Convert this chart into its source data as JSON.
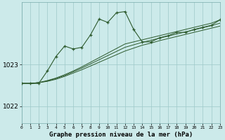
{
  "title": "Graphe pression niveau de la mer (hPa)",
  "bg_color": "#cceaea",
  "grid_color": "#9ec8c8",
  "line_color": "#2d5a2d",
  "xmin": 0,
  "xmax": 23,
  "ymin": 1021.6,
  "ymax": 1024.5,
  "yticks": [
    1022,
    1023
  ],
  "xticks": [
    0,
    1,
    2,
    3,
    4,
    5,
    6,
    7,
    8,
    9,
    10,
    11,
    12,
    13,
    14,
    15,
    16,
    17,
    18,
    19,
    20,
    21,
    22,
    23
  ],
  "line1_nomarker": [
    [
      0,
      1022.55
    ],
    [
      1,
      1022.55
    ],
    [
      2,
      1022.57
    ],
    [
      3,
      1022.6
    ],
    [
      4,
      1022.65
    ],
    [
      5,
      1022.72
    ],
    [
      6,
      1022.8
    ],
    [
      7,
      1022.88
    ],
    [
      8,
      1022.97
    ],
    [
      9,
      1023.06
    ],
    [
      10,
      1023.15
    ],
    [
      11,
      1023.24
    ],
    [
      12,
      1023.33
    ],
    [
      13,
      1023.4
    ],
    [
      14,
      1023.47
    ],
    [
      15,
      1023.52
    ],
    [
      16,
      1023.58
    ],
    [
      17,
      1023.63
    ],
    [
      18,
      1023.68
    ],
    [
      19,
      1023.73
    ],
    [
      20,
      1023.78
    ],
    [
      21,
      1023.83
    ],
    [
      22,
      1023.88
    ],
    [
      23,
      1023.93
    ]
  ],
  "line2_nomarker": [
    [
      0,
      1022.55
    ],
    [
      1,
      1022.55
    ],
    [
      2,
      1022.57
    ],
    [
      3,
      1022.61
    ],
    [
      4,
      1022.67
    ],
    [
      5,
      1022.74
    ],
    [
      6,
      1022.83
    ],
    [
      7,
      1022.92
    ],
    [
      8,
      1023.02
    ],
    [
      9,
      1023.12
    ],
    [
      10,
      1023.22
    ],
    [
      11,
      1023.32
    ],
    [
      12,
      1023.42
    ],
    [
      13,
      1023.48
    ],
    [
      14,
      1023.54
    ],
    [
      15,
      1023.59
    ],
    [
      16,
      1023.64
    ],
    [
      17,
      1023.69
    ],
    [
      18,
      1023.74
    ],
    [
      19,
      1023.79
    ],
    [
      20,
      1023.84
    ],
    [
      21,
      1023.89
    ],
    [
      22,
      1023.94
    ],
    [
      23,
      1024.0
    ]
  ],
  "line3_nomarker": [
    [
      0,
      1022.55
    ],
    [
      1,
      1022.55
    ],
    [
      2,
      1022.57
    ],
    [
      3,
      1022.62
    ],
    [
      4,
      1022.68
    ],
    [
      5,
      1022.76
    ],
    [
      6,
      1022.85
    ],
    [
      7,
      1022.95
    ],
    [
      8,
      1023.06
    ],
    [
      9,
      1023.17
    ],
    [
      10,
      1023.28
    ],
    [
      11,
      1023.39
    ],
    [
      12,
      1023.5
    ],
    [
      13,
      1023.55
    ],
    [
      14,
      1023.6
    ],
    [
      15,
      1023.65
    ],
    [
      16,
      1023.7
    ],
    [
      17,
      1023.75
    ],
    [
      18,
      1023.8
    ],
    [
      19,
      1023.85
    ],
    [
      20,
      1023.9
    ],
    [
      21,
      1023.95
    ],
    [
      22,
      1024.0
    ],
    [
      23,
      1024.08
    ]
  ],
  "main_line": [
    [
      0,
      1022.55
    ],
    [
      1,
      1022.55
    ],
    [
      2,
      1022.55
    ],
    [
      3,
      1022.85
    ],
    [
      4,
      1023.2
    ],
    [
      5,
      1023.45
    ],
    [
      6,
      1023.38
    ],
    [
      7,
      1023.42
    ],
    [
      8,
      1023.72
    ],
    [
      9,
      1024.1
    ],
    [
      10,
      1024.02
    ],
    [
      11,
      1024.25
    ],
    [
      12,
      1024.28
    ],
    [
      13,
      1023.85
    ],
    [
      14,
      1023.55
    ],
    [
      15,
      1023.55
    ],
    [
      16,
      1023.65
    ],
    [
      17,
      1023.7
    ],
    [
      18,
      1023.78
    ],
    [
      19,
      1023.78
    ],
    [
      20,
      1023.85
    ],
    [
      21,
      1023.9
    ],
    [
      22,
      1023.95
    ],
    [
      23,
      1024.08
    ]
  ]
}
